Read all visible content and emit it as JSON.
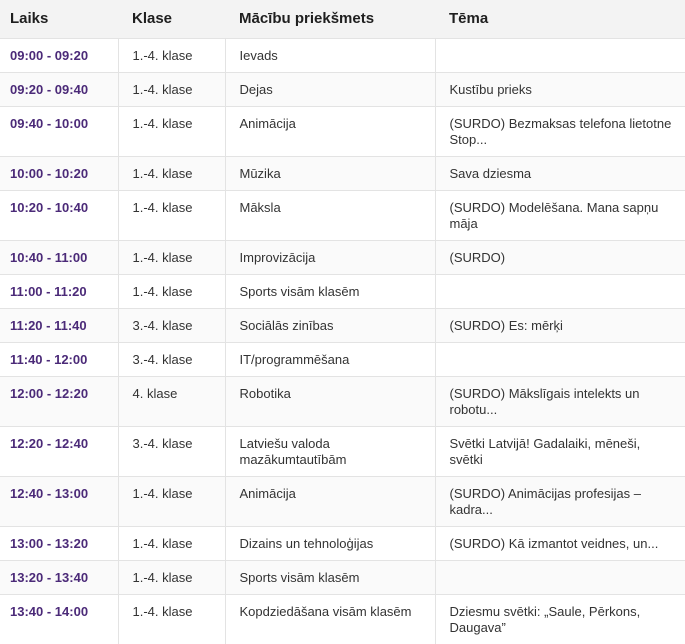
{
  "header": {
    "time": "Laiks",
    "class": "Klase",
    "subject": "Mācību priekšmets",
    "topic": "Tēma"
  },
  "rows": [
    {
      "time": "09:00 - 09:20",
      "class": "1.-4. klase",
      "subject": "Ievads",
      "topic": ""
    },
    {
      "time": "09:20 - 09:40",
      "class": "1.-4. klase",
      "subject": "Dejas",
      "topic": "Kustību prieks"
    },
    {
      "time": "09:40 - 10:00",
      "class": "1.-4. klase",
      "subject": "Animācija",
      "topic": "(SURDO) Bezmaksas telefona lietotne Stop..."
    },
    {
      "time": "10:00 - 10:20",
      "class": "1.-4. klase",
      "subject": "Mūzika",
      "topic": "Sava dziesma"
    },
    {
      "time": "10:20 - 10:40",
      "class": "1.-4. klase",
      "subject": "Māksla",
      "topic": "(SURDO) Modelēšana. Mana sapņu māja"
    },
    {
      "time": "10:40 - 11:00",
      "class": "1.-4. klase",
      "subject": "Improvizācija",
      "topic": "(SURDO)"
    },
    {
      "time": "11:00 - 11:20",
      "class": "1.-4. klase",
      "subject": "Sports visām klasēm",
      "topic": ""
    },
    {
      "time": "11:20 - 11:40",
      "class": "3.-4. klase",
      "subject": "Sociālās zinības",
      "topic": "(SURDO) Es: mērķi"
    },
    {
      "time": "11:40 - 12:00",
      "class": "3.-4. klase",
      "subject": "IT/programmēšana",
      "topic": ""
    },
    {
      "time": "12:00 - 12:20",
      "class": "4. klase",
      "subject": "Robotika",
      "topic": "(SURDO) Mākslīgais intelekts un robotu..."
    },
    {
      "time": "12:20 - 12:40",
      "class": "3.-4. klase",
      "subject": "Latviešu valoda mazākumtautībām",
      "topic": "Svētki Latvijā! Gadalaiki, mēneši, svētki"
    },
    {
      "time": "12:40 - 13:00",
      "class": "1.-4. klase",
      "subject": "Animācija",
      "topic": "(SURDO) Animācijas profesijas – kadra..."
    },
    {
      "time": "13:00 - 13:20",
      "class": "1.-4. klase",
      "subject": "Dizains un tehnoloģijas",
      "topic": "(SURDO) Kā izmantot veidnes, un..."
    },
    {
      "time": "13:20 - 13:40",
      "class": "1.-4. klase",
      "subject": "Sports visām klasēm",
      "topic": ""
    },
    {
      "time": "13:40 - 14:00",
      "class": "1.-4. klase",
      "subject": "Kopdziedāšana visām klasēm",
      "topic": "Dziesmu svētki: „Saule, Pērkons, Daugava”"
    }
  ],
  "colors": {
    "time_text": "#4b2a78",
    "header_bg": "#f3f3f3"
  }
}
